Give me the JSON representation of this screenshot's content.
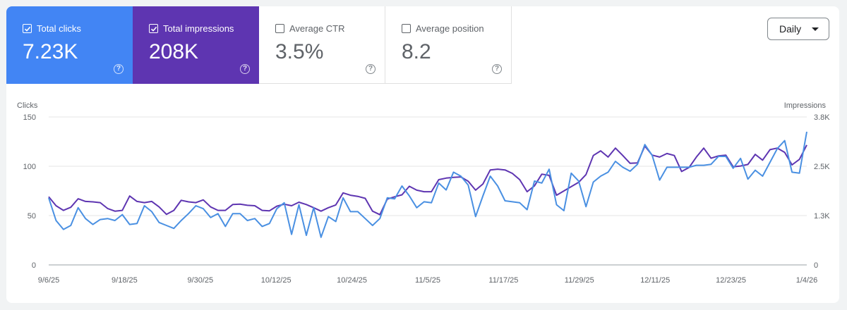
{
  "metrics": [
    {
      "label": "Total clicks",
      "value": "7.23K",
      "selected": true,
      "color": "#4285f4"
    },
    {
      "label": "Total impressions",
      "value": "208K",
      "selected": true,
      "color": "#5e35b1"
    },
    {
      "label": "Average CTR",
      "value": "3.5%",
      "selected": false,
      "color": "#ffffff"
    },
    {
      "label": "Average position",
      "value": "8.2",
      "selected": false,
      "color": "#ffffff"
    }
  ],
  "help_glyph": "?",
  "granularity": {
    "label": "Daily",
    "icon": "caret-down-icon"
  },
  "chart_data": {
    "type": "line",
    "y_left_label": "Clicks",
    "y_right_label": "Impressions",
    "y_left_ticks": [
      "150",
      "100",
      "50",
      "0"
    ],
    "y_right_ticks": [
      "3.8K",
      "2.5K",
      "1.3K",
      "0"
    ],
    "y_left_range": [
      0,
      150
    ],
    "y_right_range": [
      0,
      3800
    ],
    "x_tick_labels": [
      "9/6/25",
      "9/18/25",
      "9/30/25",
      "10/12/25",
      "10/24/25",
      "11/5/25",
      "11/17/25",
      "11/29/25",
      "12/11/25",
      "12/23/25",
      "1/4/26"
    ],
    "grid": true,
    "series": [
      {
        "name": "Clicks",
        "axis": "left",
        "color": "#4a90e2",
        "values": [
          68,
          45,
          36,
          40,
          58,
          47,
          41,
          46,
          47,
          45,
          51,
          41,
          42,
          60,
          54,
          43,
          40,
          37,
          45,
          52,
          60,
          57,
          48,
          52,
          39,
          52,
          52,
          45,
          47,
          39,
          42,
          57,
          63,
          31,
          61,
          30,
          58,
          28,
          49,
          44,
          68,
          54,
          54,
          47,
          40,
          47,
          68,
          67,
          80,
          70,
          58,
          64,
          63,
          83,
          76,
          94,
          90,
          81,
          49,
          70,
          90,
          80,
          65,
          64,
          63,
          56,
          85,
          83,
          97,
          61,
          55,
          93,
          85,
          59,
          84,
          90,
          94,
          105,
          99,
          95,
          102,
          122,
          111,
          86,
          99,
          99,
          99,
          99,
          101,
          101,
          102,
          110,
          110,
          98,
          108,
          87,
          96,
          90,
          104,
          118,
          126,
          94,
          93,
          135
        ]
      },
      {
        "name": "Impressions",
        "axis": "right",
        "color": "#5e35b1",
        "values": [
          1750,
          1520,
          1400,
          1480,
          1700,
          1630,
          1620,
          1600,
          1450,
          1380,
          1400,
          1770,
          1630,
          1600,
          1630,
          1490,
          1300,
          1400,
          1660,
          1620,
          1600,
          1670,
          1490,
          1400,
          1400,
          1550,
          1560,
          1530,
          1520,
          1400,
          1390,
          1510,
          1560,
          1520,
          1610,
          1550,
          1470,
          1380,
          1470,
          1540,
          1850,
          1790,
          1760,
          1710,
          1380,
          1290,
          1690,
          1750,
          1800,
          2020,
          1920,
          1880,
          1880,
          2190,
          2230,
          2250,
          2260,
          2150,
          1920,
          2080,
          2440,
          2460,
          2440,
          2350,
          2190,
          1880,
          2030,
          2330,
          2300,
          1790,
          1900,
          2010,
          2120,
          2320,
          2810,
          2930,
          2770,
          3000,
          2810,
          2610,
          2620,
          3050,
          2820,
          2770,
          2860,
          2810,
          2400,
          2500,
          2770,
          3000,
          2740,
          2800,
          2820,
          2520,
          2540,
          2580,
          2840,
          2690,
          2960,
          3000,
          2890,
          2570,
          2710,
          3080
        ]
      }
    ]
  }
}
